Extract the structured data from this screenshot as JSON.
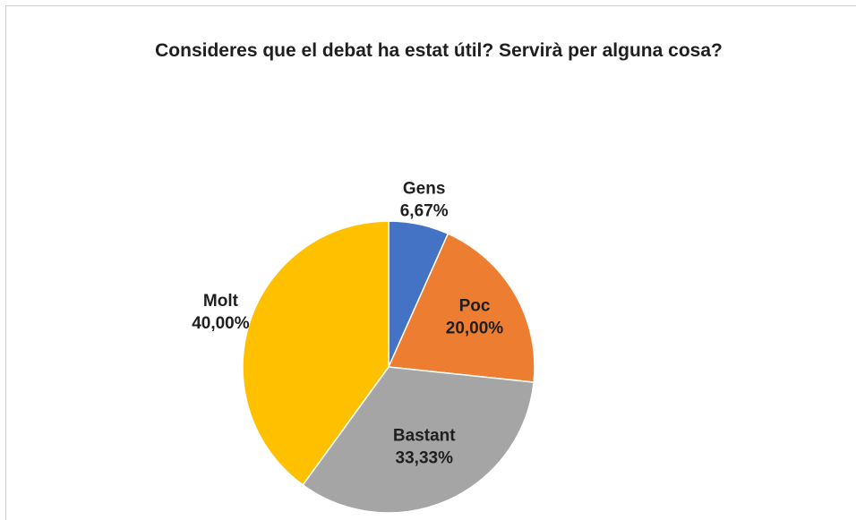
{
  "chart_data": {
    "type": "pie",
    "title": "Consideres que el debat ha estat útil? Servirà per alguna cosa?",
    "categories": [
      "Gens",
      "Poc",
      "Bastant",
      "Molt"
    ],
    "values": [
      6.67,
      20.0,
      33.33,
      40.0
    ],
    "value_labels": [
      "6,67%",
      "20,00%",
      "33,33%",
      "40,00%"
    ],
    "colors": [
      "#4472c4",
      "#ed7d31",
      "#a5a5a5",
      "#ffc000"
    ]
  }
}
